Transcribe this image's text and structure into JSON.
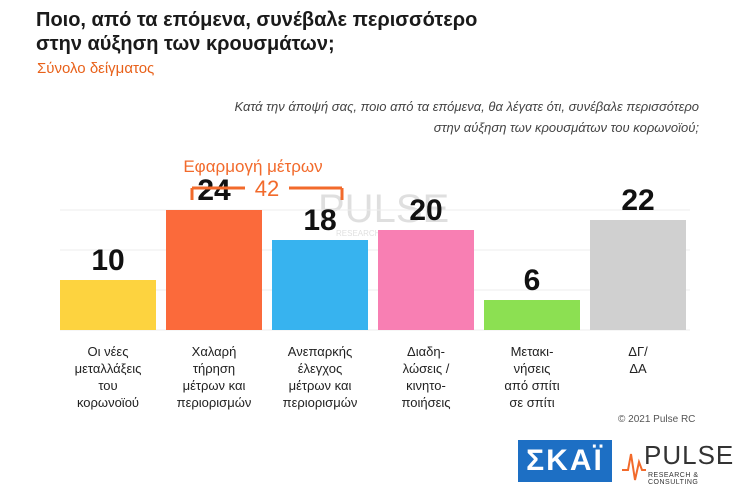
{
  "header": {
    "title_line1": "Ποιο, από τα επόμενα, συνέβαλε περισσότερο",
    "title_line2": "στην αύξηση των κρουσμάτων;",
    "subtitle": "Σύνολο δείγματος"
  },
  "question": {
    "line1": "Κατά την άποψή σας, ποιο από τα επόμενα, θα λέγατε ότι, συνέβαλε περισσότερο",
    "line2": "στην αύξηση των κρουσμάτων του κορωνοϊού;"
  },
  "chart_data": {
    "type": "bar",
    "categories": [
      [
        "Οι νέες",
        "μεταλλάξεις",
        "του",
        "κορωνοϊού"
      ],
      [
        "Χαλαρή",
        "τήρηση",
        "μέτρων και",
        "περιορισμών"
      ],
      [
        "Ανεπαρκής",
        "έλεγχος",
        "μέτρων και",
        "περιορισμών"
      ],
      [
        "Διαδη-",
        "λώσεις /",
        "κινητο-",
        "ποιήσεις"
      ],
      [
        "Μετακι-",
        "νήσεις",
        "από σπίτι",
        "σε σπίτι"
      ],
      [
        "ΔΓ/",
        "ΔΑ"
      ]
    ],
    "values": [
      10,
      24,
      18,
      20,
      6,
      22
    ],
    "colors": [
      "#fdd33f",
      "#fb6a3b",
      "#37b3ef",
      "#f87fb3",
      "#8ce052",
      "#d0d0d0"
    ],
    "ylim": [
      0,
      26
    ],
    "grid": true,
    "bracket": {
      "label": "Εφαρμογή μέτρων",
      "value": "42",
      "color": "#f26a2b"
    }
  },
  "watermark": {
    "word": "PULSE",
    "sub": "RESEARCH & CONSULTING"
  },
  "footer": {
    "copyright": "© 2021 Pulse RC",
    "skai_logo": "ΣΚΑΪ",
    "pulse_logo": "PULSE",
    "pulse_sub": "RESEARCH & CONSULTING"
  }
}
